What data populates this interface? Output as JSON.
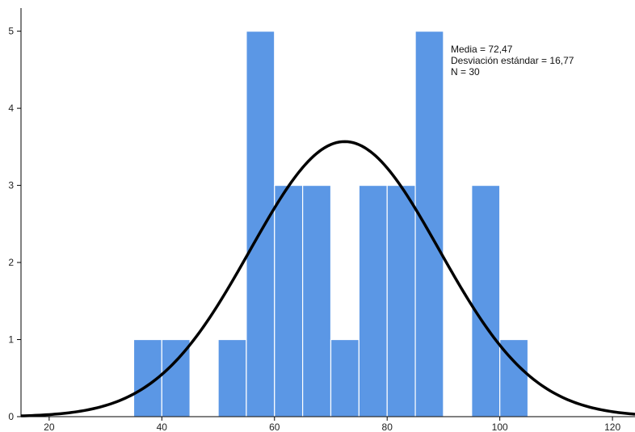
{
  "chart_data": {
    "type": "bar",
    "subtype": "histogram",
    "bin_width": 5,
    "bins": [
      {
        "start": 35,
        "end": 40,
        "count": 1
      },
      {
        "start": 40,
        "end": 45,
        "count": 1
      },
      {
        "start": 45,
        "end": 50,
        "count": 0
      },
      {
        "start": 50,
        "end": 55,
        "count": 1
      },
      {
        "start": 55,
        "end": 60,
        "count": 5
      },
      {
        "start": 60,
        "end": 65,
        "count": 3
      },
      {
        "start": 65,
        "end": 70,
        "count": 3
      },
      {
        "start": 70,
        "end": 75,
        "count": 1
      },
      {
        "start": 75,
        "end": 80,
        "count": 3
      },
      {
        "start": 80,
        "end": 85,
        "count": 3
      },
      {
        "start": 85,
        "end": 90,
        "count": 5
      },
      {
        "start": 90,
        "end": 95,
        "count": 0
      },
      {
        "start": 95,
        "end": 100,
        "count": 3
      },
      {
        "start": 100,
        "end": 105,
        "count": 1
      }
    ],
    "normal_curve": {
      "mean": 72.47,
      "sd": 16.77,
      "n": 30
    },
    "xlim": [
      15,
      124
    ],
    "ylim": [
      0,
      5.3
    ],
    "x_ticks": [
      20,
      40,
      60,
      80,
      100,
      120
    ],
    "y_ticks": [
      0,
      1,
      2,
      3,
      4,
      5
    ],
    "stats_text": [
      "Media = 72,47",
      "Desviación estándar = 16,77",
      "N = 30"
    ],
    "title": "",
    "xlabel": "",
    "ylabel": "",
    "grid": false,
    "colors": {
      "bar": "#5b97e5",
      "bar_edge": "#ffffff",
      "curve": "#000000",
      "axis": "#000000"
    }
  }
}
